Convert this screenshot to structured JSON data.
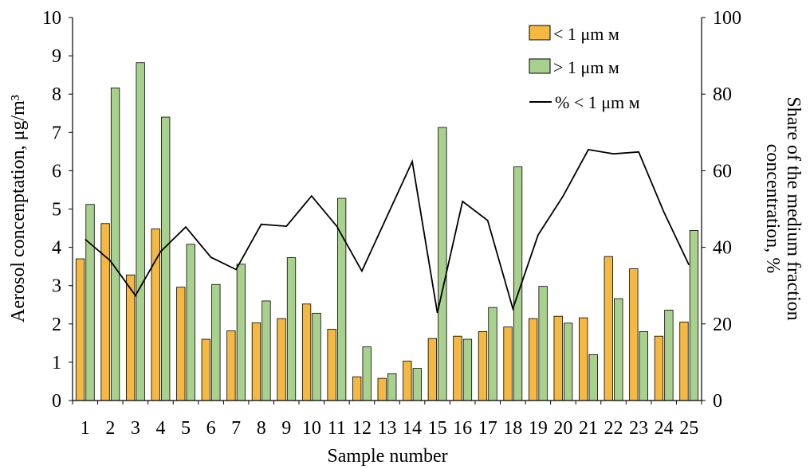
{
  "chart_data": {
    "type": "bar",
    "categories": [
      "1",
      "2",
      "3",
      "4",
      "5",
      "6",
      "7",
      "8",
      "9",
      "10",
      "11",
      "12",
      "13",
      "14",
      "15",
      "16",
      "17",
      "18",
      "19",
      "20",
      "21",
      "22",
      "23",
      "24",
      "25"
    ],
    "series": [
      {
        "name": "< 1  μm м",
        "kind": "bar",
        "axis": "left",
        "color": "#F5B942",
        "values": [
          3.7,
          4.62,
          3.28,
          4.48,
          2.96,
          1.6,
          1.82,
          2.03,
          2.14,
          2.52,
          1.86,
          0.62,
          0.58,
          1.03,
          1.62,
          1.68,
          1.8,
          1.92,
          2.14,
          2.2,
          2.16,
          3.76,
          3.44,
          1.68,
          2.05
        ]
      },
      {
        "name": "> 1  μm м",
        "kind": "bar",
        "axis": "left",
        "color": "#A9D18E",
        "values": [
          5.12,
          8.16,
          8.82,
          7.4,
          4.08,
          3.03,
          3.56,
          2.6,
          3.73,
          2.28,
          5.28,
          1.4,
          0.7,
          0.84,
          7.13,
          1.6,
          2.43,
          6.1,
          2.98,
          2.02,
          1.2,
          2.66,
          1.8,
          2.36,
          4.44
        ]
      },
      {
        "name": "% < 1  μm м",
        "kind": "line",
        "axis": "right",
        "color": "#000000",
        "values": [
          42.1,
          36.5,
          27.4,
          38.9,
          45.3,
          37.4,
          34.2,
          46.0,
          45.5,
          53.4,
          45.5,
          33.8,
          48.1,
          62.4,
          22.9,
          52.0,
          47.0,
          24.0,
          43.2,
          53.4,
          65.5,
          64.4,
          64.9,
          49.2,
          35.4
        ]
      }
    ],
    "xlabel": "Sample number",
    "ylabel": "Aerosol concenptation, μg/m³",
    "y2label_line1": "Share of the medium fraction",
    "y2label_line2": "concentration, %",
    "ylim": [
      0,
      10
    ],
    "y_ticks": [
      "0",
      "1",
      "2",
      "3",
      "4",
      "5",
      "6",
      "7",
      "8",
      "9",
      "10"
    ],
    "y2lim": [
      0,
      100
    ],
    "y2_ticks": [
      "0",
      "20",
      "40",
      "60",
      "80",
      "100"
    ],
    "grid": false,
    "legend_position": "top-right"
  }
}
